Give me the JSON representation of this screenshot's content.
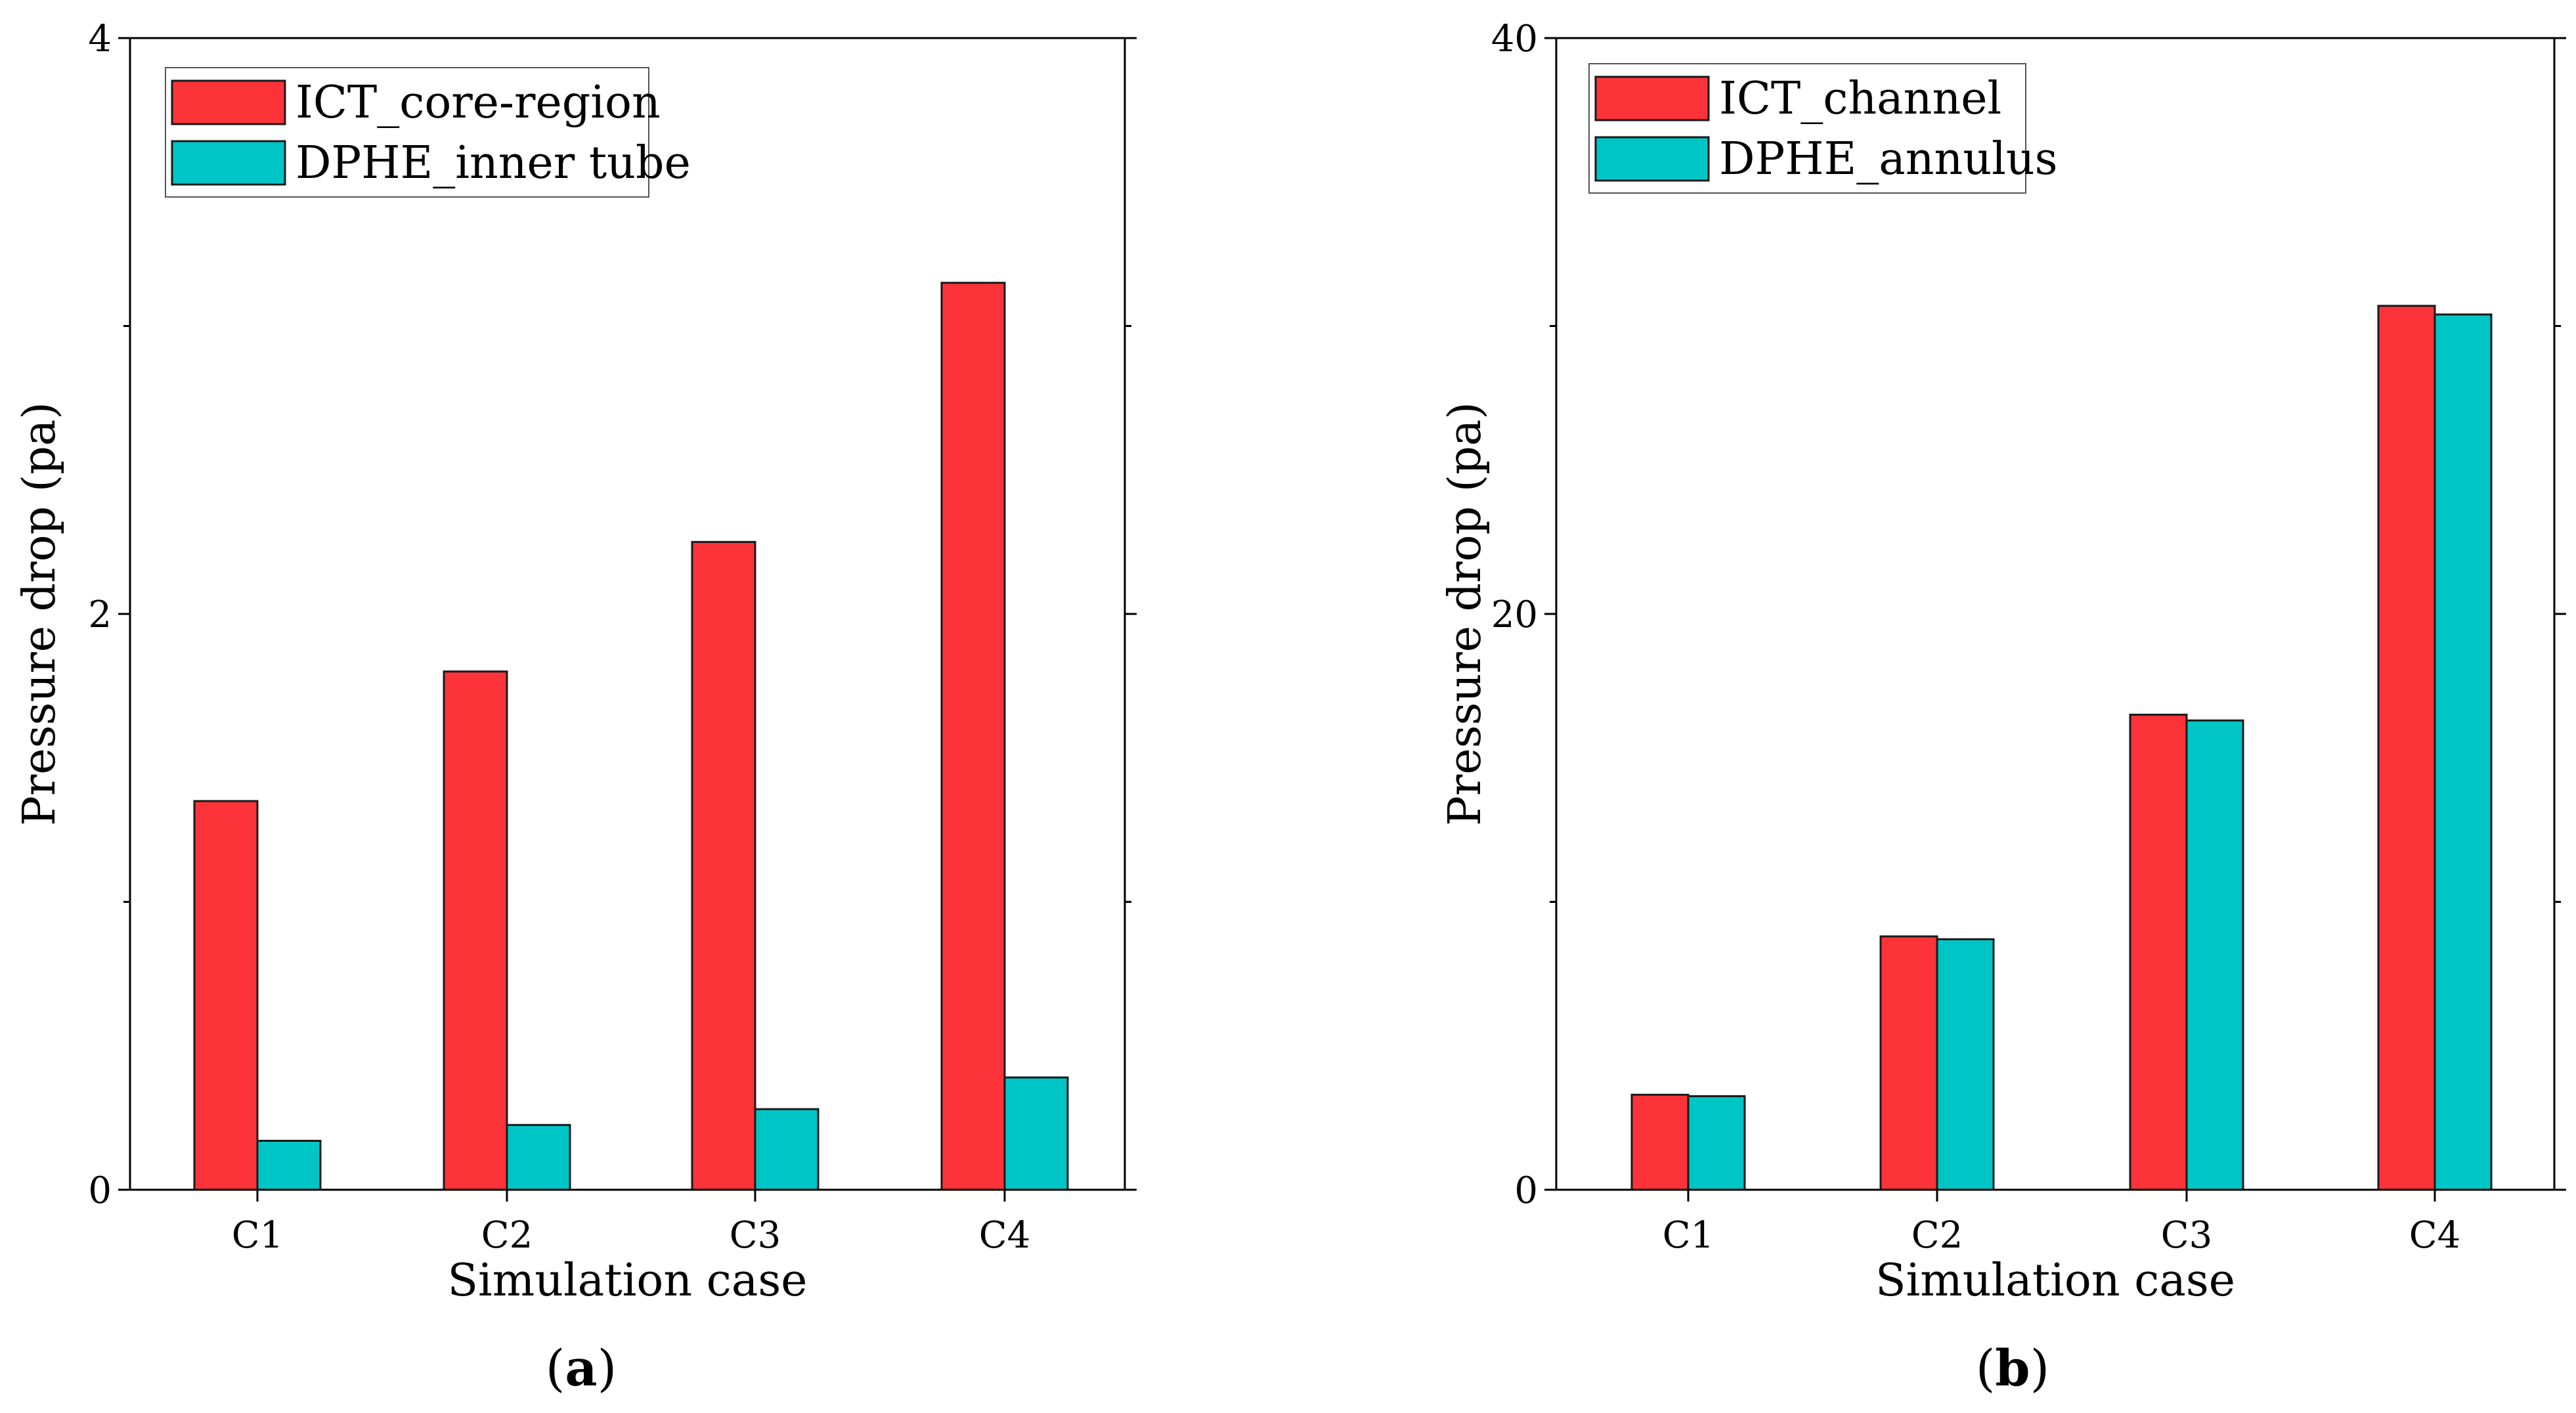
{
  "figure": {
    "panels": [
      {
        "label_open": "(",
        "label_letter": "a",
        "label_close": ")"
      },
      {
        "label_open": "(",
        "label_letter": "b",
        "label_close": ")"
      }
    ]
  },
  "colors": {
    "red": "#fc3339",
    "cyan": "#00c5c6",
    "bar_stroke": "#1a1a1a"
  },
  "chart_data": [
    {
      "type": "bar",
      "categories": [
        "C1",
        "C2",
        "C3",
        "C4"
      ],
      "series": [
        {
          "name": "ICT_core-region",
          "values": [
            1.35,
            1.8,
            2.25,
            3.15
          ],
          "color": "#fc3339"
        },
        {
          "name": "DPHE_inner tube",
          "values": [
            0.17,
            0.225,
            0.28,
            0.39
          ],
          "color": "#00c5c6"
        }
      ],
      "title": "",
      "xlabel": "Simulation case",
      "ylabel": "Pressure drop (pa)",
      "ylim": [
        0,
        4
      ],
      "yticks": [
        0,
        2,
        4
      ],
      "ytick_labels": [
        "0",
        "2",
        "4"
      ],
      "grid": false,
      "legend_position": "top-left"
    },
    {
      "type": "bar",
      "categories": [
        "C1",
        "C2",
        "C3",
        "C4"
      ],
      "series": [
        {
          "name": "ICT_channel",
          "values": [
            3.3,
            8.8,
            16.5,
            30.7
          ],
          "color": "#fc3339"
        },
        {
          "name": "DPHE_annulus",
          "values": [
            3.25,
            8.7,
            16.3,
            30.4
          ],
          "color": "#00c5c6"
        }
      ],
      "title": "",
      "xlabel": "Simulation case",
      "ylabel": "Pressure drop (pa)",
      "ylim": [
        0,
        40
      ],
      "yticks": [
        0,
        20,
        40
      ],
      "ytick_labels": [
        "0",
        "20",
        "40"
      ],
      "grid": false,
      "legend_position": "top-left"
    }
  ]
}
